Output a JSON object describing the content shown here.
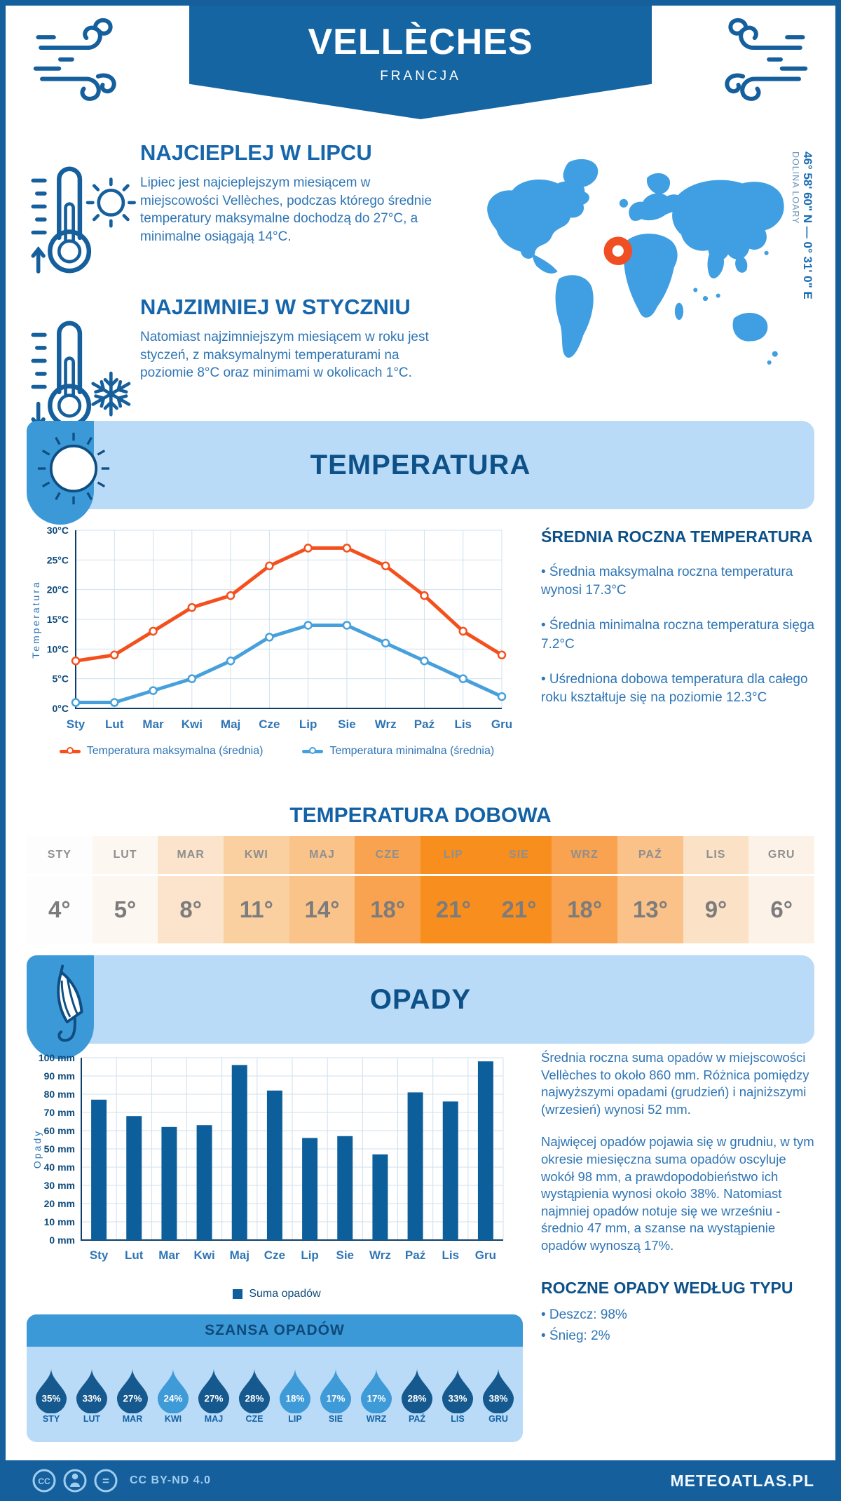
{
  "page": {
    "title": "VELLÈCHES",
    "subtitle": "FRANCJA",
    "footer": {
      "license": "CC BY-ND 4.0",
      "site": "METEOATLAS.PL"
    }
  },
  "location": {
    "coordinates": "46° 58' 60\" N — 0° 31' 0\" E",
    "region": "DOLINA LOARY"
  },
  "highlights": [
    {
      "title": "NAJCIEPLEJ W LIPCU",
      "text": "Lipiec jest najcieplejszym miesiącem w miejscowości Vellèches, podczas którego średnie temperatury maksymalne dochodzą do 27°C, a minimalne osiągają 14°C."
    },
    {
      "title": "NAJZIMNIEJ W STYCZNIU",
      "text": "Natomiast najzimniejszym miesiącem w roku jest styczeń, z maksymalnymi temperaturami na poziomie 8°C oraz minimami w okolicach 1°C."
    }
  ],
  "temperature_section": {
    "title": "TEMPERATURA",
    "annual": {
      "title": "ŚREDNIA ROCZNA TEMPERATURA",
      "bullets": [
        "• Średnia maksymalna roczna temperatura wynosi 17.3°C",
        "• Średnia minimalna roczna temperatura sięga 7.2°C",
        "• Uśredniona dobowa temperatura dla całego roku kształtuje się na poziomie 12.3°C"
      ]
    },
    "daily_title": "TEMPERATURA DOBOWA"
  },
  "precipitation_section": {
    "title": "OPADY",
    "paragraphs": [
      "Średnia roczna suma opadów w miejscowości Vellèches to około 860 mm. Różnica pomiędzy najwyższymi opadami (grudzień) i najniższymi (wrzesień) wynosi 52 mm.",
      "Najwięcej opadów pojawia się w grudniu, w tym okresie miesięczna suma opadów oscyluje wokół 98 mm, a prawdopodobieństwo ich wystąpienia wynosi około 38%. Natomiast najmniej opadów notuje się we wrześniu - średnio 47 mm, a szanse na wystąpienie opadów wynoszą 17%."
    ],
    "by_type": {
      "title": "ROCZNE OPADY WEDŁUG TYPU",
      "bullets": [
        "• Deszcz: 98%",
        "• Śnieg: 2%"
      ]
    },
    "chance_title": "SZANSA OPADÓW"
  },
  "chart_data": [
    {
      "type": "line",
      "name": "monthly-temperature",
      "categories": [
        "Sty",
        "Lut",
        "Mar",
        "Kwi",
        "Maj",
        "Cze",
        "Lip",
        "Sie",
        "Wrz",
        "Paź",
        "Lis",
        "Gru"
      ],
      "series": [
        {
          "name": "Temperatura maksymalna (średnia)",
          "color": "#f4501e",
          "values": [
            8,
            9,
            13,
            17,
            19,
            24,
            27,
            27,
            24,
            19,
            13,
            9
          ]
        },
        {
          "name": "Temperatura minimalna (średnia)",
          "color": "#47a0dc",
          "values": [
            1,
            1,
            3,
            5,
            8,
            12,
            14,
            14,
            11,
            8,
            5,
            2
          ]
        }
      ],
      "ylabel": "Temperatura",
      "ylim": [
        0,
        30
      ],
      "ytick_step": 5,
      "yunit": "°C",
      "grid": true,
      "legend_position": "bottom"
    },
    {
      "type": "table",
      "name": "daily-temperature",
      "categories": [
        "STY",
        "LUT",
        "MAR",
        "KWI",
        "MAJ",
        "CZE",
        "LIP",
        "SIE",
        "WRZ",
        "PAŹ",
        "LIS",
        "GRU"
      ],
      "values": [
        4,
        5,
        8,
        11,
        14,
        18,
        21,
        21,
        18,
        13,
        9,
        6
      ],
      "unit": "°",
      "cell_colors": [
        "#fdfdfd",
        "#fdf7f2",
        "#fbe4cb",
        "#fbd0a1",
        "#fac38a",
        "#f9a350",
        "#f78e1e",
        "#f78e1e",
        "#f9a350",
        "#fac189",
        "#fbe2c6",
        "#fdf2e7"
      ]
    },
    {
      "type": "bar",
      "name": "monthly-precipitation",
      "categories": [
        "Sty",
        "Lut",
        "Mar",
        "Kwi",
        "Maj",
        "Cze",
        "Lip",
        "Sie",
        "Wrz",
        "Paź",
        "Lis",
        "Gru"
      ],
      "series": [
        {
          "name": "Suma opadów",
          "color": "#0d5f9b",
          "values": [
            77,
            68,
            62,
            63,
            96,
            82,
            56,
            57,
            47,
            81,
            76,
            98
          ]
        }
      ],
      "ylabel": "Opady",
      "ylim": [
        0,
        100
      ],
      "ytick_step": 10,
      "yunit": " mm",
      "grid": true,
      "legend_position": "bottom"
    },
    {
      "type": "pictogram",
      "name": "precipitation-chance",
      "categories": [
        "STY",
        "LUT",
        "MAR",
        "KWI",
        "MAJ",
        "CZE",
        "LIP",
        "SIE",
        "WRZ",
        "PAŹ",
        "LIS",
        "GRU"
      ],
      "values": [
        35,
        33,
        27,
        24,
        27,
        28,
        18,
        17,
        17,
        28,
        33,
        38
      ],
      "unit": "%",
      "high_color": "#16598e",
      "low_color": "#3f9ad8",
      "threshold": 27
    }
  ],
  "colors": {
    "primary_dark": "#155f9c",
    "banner_light": "#b9dbf7",
    "accent_medium": "#3c99d8",
    "heading": "#0d5188",
    "body_text": "#2e75b5",
    "map_fill": "#3f9fe2",
    "marker_orange": "#f04e23"
  }
}
